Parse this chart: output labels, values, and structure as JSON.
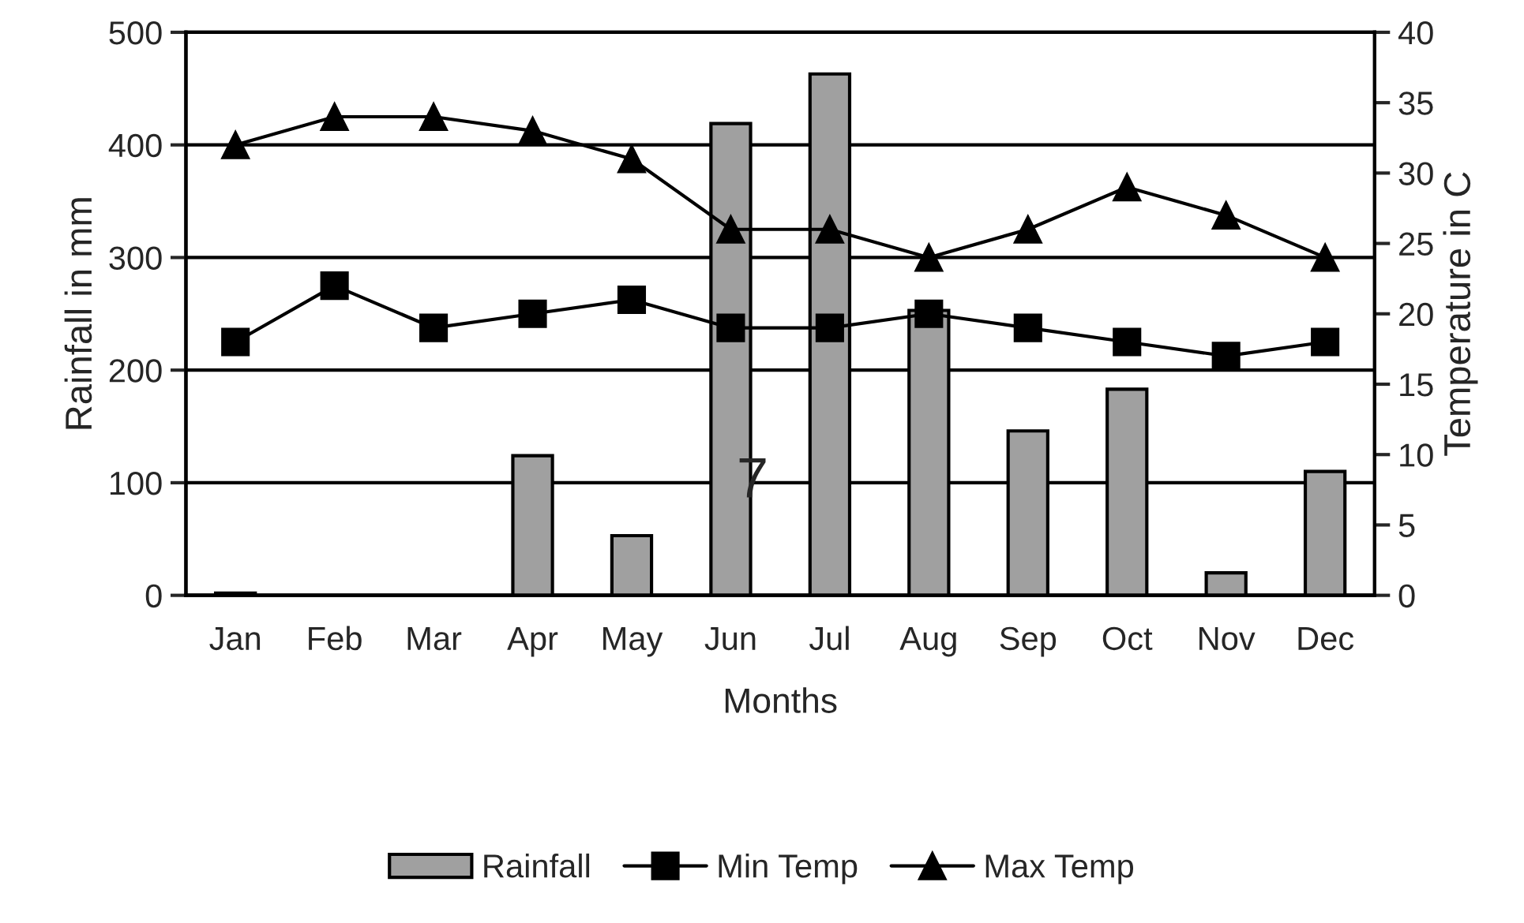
{
  "chart_data": {
    "type": "bar",
    "xlabel": "Months",
    "ylabel": "Rainfall in mm",
    "y2label": "Temperature in C",
    "categories": [
      "Jan",
      "Feb",
      "Mar",
      "Apr",
      "May",
      "Jun",
      "Jul",
      "Aug",
      "Sep",
      "Oct",
      "Nov",
      "Dec"
    ],
    "series": [
      {
        "name": "Rainfall",
        "color": "#a0a0a0",
        "values": [
          2,
          0,
          0,
          124,
          53,
          419,
          463,
          253,
          146,
          183,
          20,
          110
        ]
      },
      {
        "name": "Min Temp",
        "type": "line",
        "axis": "y2",
        "color": "#000000",
        "marker": "square",
        "values": [
          18,
          22,
          19,
          20,
          21,
          19,
          19,
          20,
          19,
          18,
          17,
          18
        ]
      },
      {
        "name": "Max Temp",
        "type": "line",
        "axis": "y2",
        "color": "#000000",
        "marker": "triangle",
        "values": [
          32,
          34,
          34,
          33,
          31,
          26,
          26,
          24,
          26,
          29,
          27,
          24
        ]
      }
    ],
    "ylim": [
      0,
      500
    ],
    "yticks": [
      0,
      100,
      200,
      300,
      400,
      500
    ],
    "y2lim": [
      0,
      40
    ],
    "y2ticks": [
      0,
      5,
      10,
      15,
      20,
      25,
      30,
      35,
      40
    ],
    "grid": "y",
    "legend": "bottom",
    "annotations": [
      "7"
    ]
  }
}
